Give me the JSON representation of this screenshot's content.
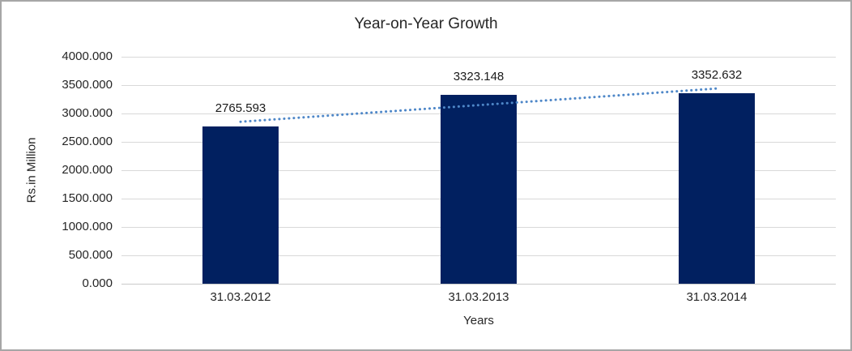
{
  "chart_data": {
    "type": "bar",
    "title": "Year-on-Year Growth",
    "xlabel": "Years",
    "ylabel": "Rs.in Million",
    "categories": [
      "31.03.2012",
      "31.03.2013",
      "31.03.2014"
    ],
    "values": [
      2765.593,
      3323.148,
      3352.632
    ],
    "data_labels": [
      "2765.593",
      "3323.148",
      "3352.632"
    ],
    "ylim": [
      0,
      4000
    ],
    "ytick_step": 500,
    "ytick_labels": [
      "0.000",
      "500.000",
      "1000.000",
      "1500.000",
      "2000.000",
      "2500.000",
      "3000.000",
      "3500.000",
      "4000.000"
    ],
    "grid": true,
    "legend": "none",
    "trendline": {
      "type": "linear",
      "style": "dotted"
    },
    "colors": {
      "bar": "#012060",
      "trendline": "#4e87c8",
      "gridline": "#d9d9d9",
      "baseline": "#c9c9c9",
      "text": "#262626",
      "border": "#a6a6a6",
      "background": "#ffffff"
    }
  }
}
